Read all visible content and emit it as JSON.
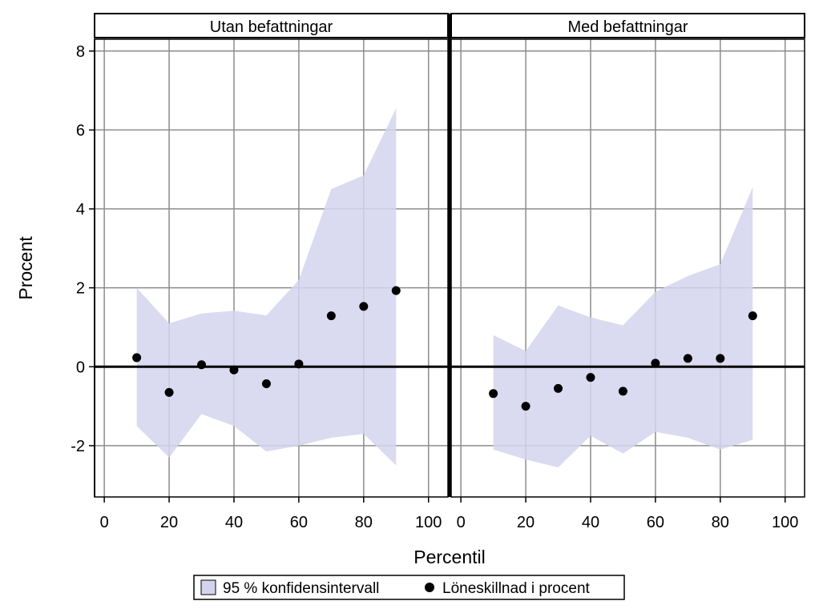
{
  "chart_data": {
    "type": "scatter",
    "xlabel": "Percentil",
    "ylabel": "Procent",
    "xlim": [
      -3,
      106
    ],
    "ylim": [
      -3.3,
      8.3
    ],
    "xticks": [
      0,
      20,
      40,
      60,
      80,
      100
    ],
    "yticks": [
      -2,
      0,
      2,
      4,
      6,
      8
    ],
    "grid": true,
    "reference_line_y": 0,
    "legend_position": "bottom",
    "legend": {
      "ci_label": "95 % konfidensintervall",
      "point_label": "Löneskillnad i procent"
    },
    "colors": {
      "ci_fill": "#d3d3ee",
      "points": "#000000",
      "grid": "#8c8c8c"
    },
    "panels": [
      {
        "title": "Utan befattningar",
        "x": [
          10,
          20,
          30,
          40,
          50,
          60,
          70,
          80,
          90
        ],
        "values": [
          0.23,
          -0.65,
          0.05,
          -0.08,
          -0.43,
          0.07,
          1.29,
          1.53,
          1.93
        ],
        "ci_lower": [
          -1.5,
          -2.3,
          -1.2,
          -1.5,
          -2.15,
          -2.0,
          -1.8,
          -1.7,
          -2.5
        ],
        "ci_upper": [
          2.0,
          1.1,
          1.35,
          1.42,
          1.3,
          2.2,
          4.5,
          4.85,
          6.55
        ]
      },
      {
        "title": "Med befattningar",
        "x": [
          10,
          20,
          30,
          40,
          50,
          60,
          70,
          80,
          90
        ],
        "values": [
          -0.68,
          -1.0,
          -0.55,
          -0.27,
          -0.62,
          0.09,
          0.21,
          0.21,
          1.29
        ],
        "ci_lower": [
          -2.1,
          -2.35,
          -2.55,
          -1.75,
          -2.2,
          -1.65,
          -1.8,
          -2.1,
          -1.85
        ],
        "ci_upper": [
          0.8,
          0.4,
          1.55,
          1.25,
          1.05,
          1.9,
          2.3,
          2.6,
          4.55
        ]
      }
    ]
  }
}
